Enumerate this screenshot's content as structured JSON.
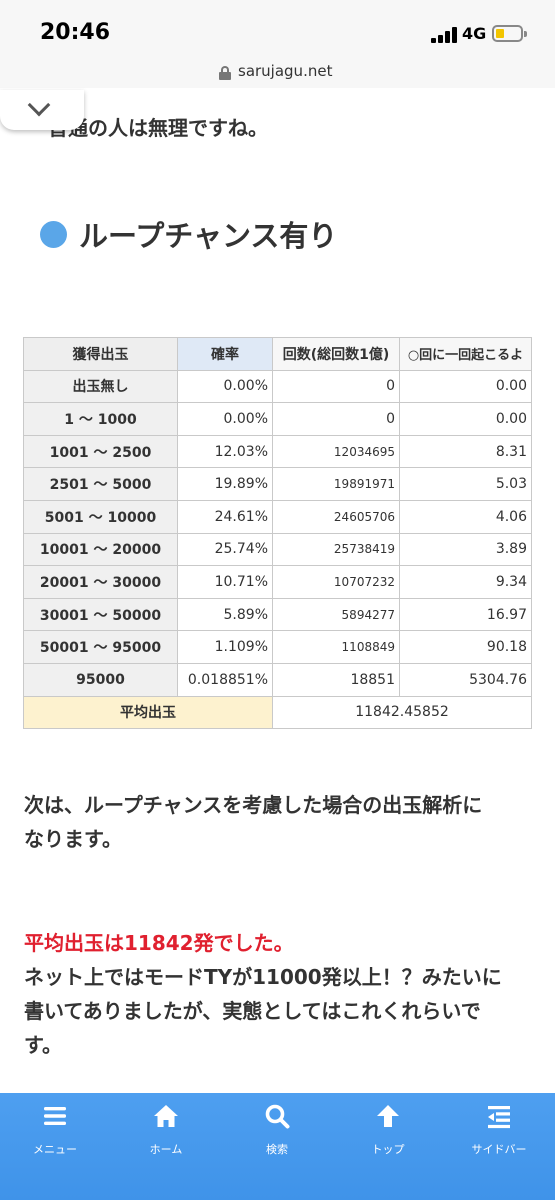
{
  "status_bar": {
    "time": "20:46",
    "network": "4G"
  },
  "browser": {
    "url": "sarujagu.net"
  },
  "article": {
    "intro_text": "普通の人は無理ですね。",
    "section_heading": "ループチャンス有り",
    "table": {
      "headers": [
        "獲得出玉",
        "確率",
        "回数(総回数1億)",
        "○回に一回起こるよ"
      ],
      "rows": [
        {
          "range": "出玉無し",
          "probability": "0.00%",
          "count": "0",
          "frequency": "0.00"
        },
        {
          "range": "1 ～ 1000",
          "probability": "0.00%",
          "count": "0",
          "frequency": "0.00"
        },
        {
          "range": "1001 ～ 2500",
          "probability": "12.03%",
          "count": "12034695",
          "frequency": "8.31"
        },
        {
          "range": "2501 ～ 5000",
          "probability": "19.89%",
          "count": "19891971",
          "frequency": "5.03"
        },
        {
          "range": "5001 ～ 10000",
          "probability": "24.61%",
          "count": "24605706",
          "frequency": "4.06"
        },
        {
          "range": "10001 ～ 20000",
          "probability": "25.74%",
          "count": "25738419",
          "frequency": "3.89"
        },
        {
          "range": "20001 ～ 30000",
          "probability": "10.71%",
          "count": "10707232",
          "frequency": "9.34"
        },
        {
          "range": "30001 ～ 50000",
          "probability": "5.89%",
          "count": "5894277",
          "frequency": "16.97"
        },
        {
          "range": "50001 ～ 95000",
          "probability": "1.109%",
          "count": "1108849",
          "frequency": "90.18"
        },
        {
          "range": "95000",
          "probability": "0.018851%",
          "count": "18851",
          "frequency": "5304.76"
        }
      ],
      "average_label": "平均出玉",
      "average_value": "11842.45852"
    },
    "paragraph_1_line_1": "次は、ループチャンスを考慮した場合の出玉解析に",
    "paragraph_1_line_2": "なります。",
    "highlight_text": "平均出玉は11842発でした。",
    "paragraph_2_line_1": "ネット上ではモードTYが11000発以上！？みたいに",
    "paragraph_2_line_2": "書いてありましたが、実態としてはこれくれらいで",
    "paragraph_2_line_3": "す。"
  },
  "bottom_nav": {
    "items": [
      {
        "label": "メニュー",
        "icon": "menu-icon"
      },
      {
        "label": "ホーム",
        "icon": "home-icon"
      },
      {
        "label": "検索",
        "icon": "search-icon"
      },
      {
        "label": "トップ",
        "icon": "arrow-up-icon"
      },
      {
        "label": "サイドバー",
        "icon": "sidebar-icon"
      }
    ]
  },
  "colors": {
    "nav_background": "#4e9ff0",
    "heading_dot": "#5aa6e8",
    "highlight_red": "#e0202f",
    "average_label_bg": "#fdf2cf",
    "battery_yellow": "#f2c500"
  }
}
